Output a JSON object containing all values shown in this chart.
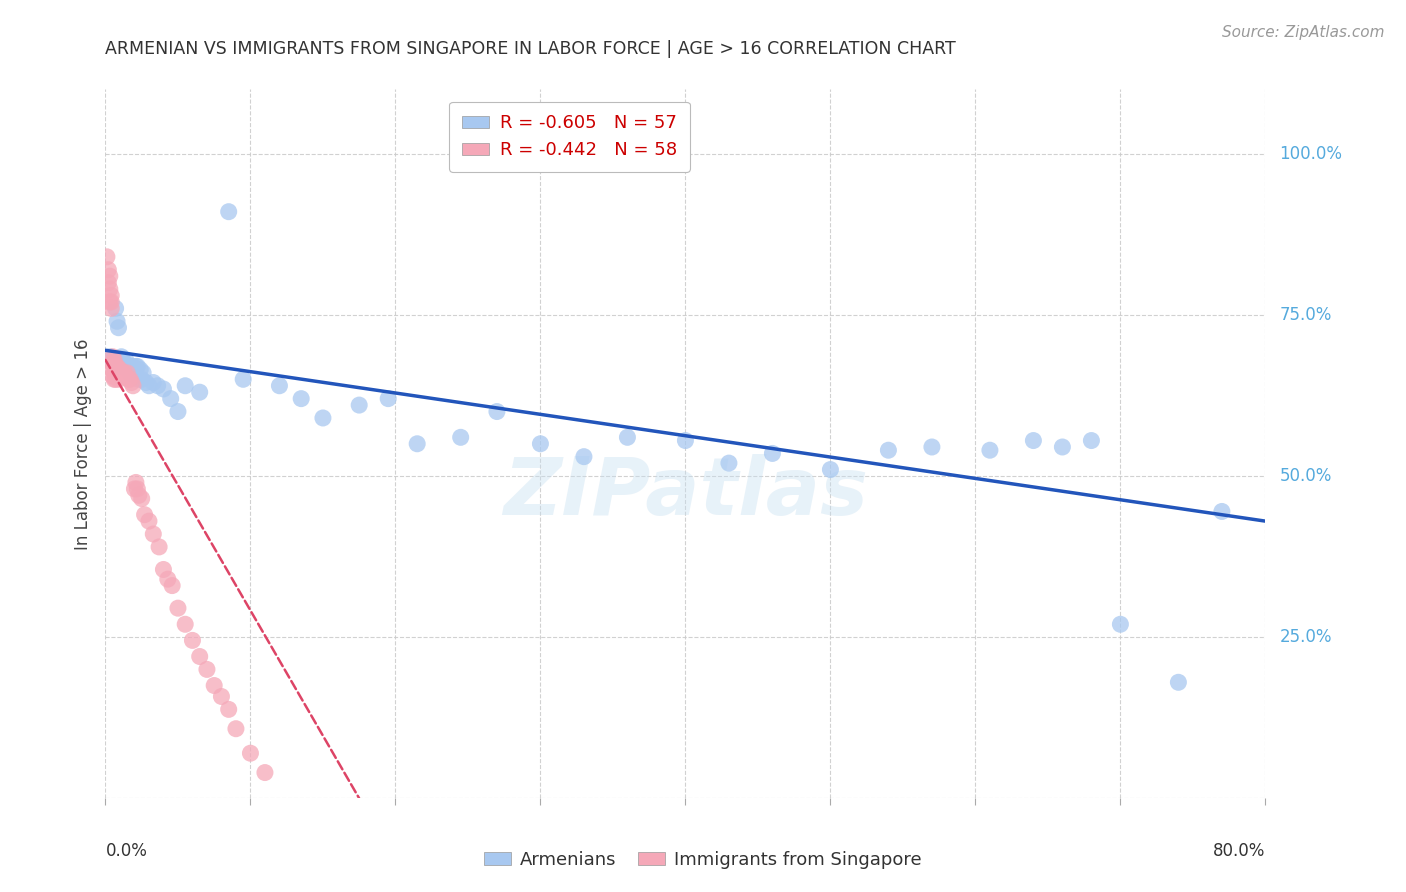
{
  "title": "ARMENIAN VS IMMIGRANTS FROM SINGAPORE IN LABOR FORCE | AGE > 16 CORRELATION CHART",
  "source": "Source: ZipAtlas.com",
  "ylabel": "In Labor Force | Age > 16",
  "legend_blue_r": "R = -0.605",
  "legend_blue_n": "N = 57",
  "legend_pink_r": "R = -0.442",
  "legend_pink_n": "N = 58",
  "legend_bottom_blue": "Armenians",
  "legend_bottom_pink": "Immigrants from Singapore",
  "blue_color": "#a8c8f0",
  "pink_color": "#f5a8b8",
  "blue_line_color": "#2255bb",
  "pink_line_color": "#dd4466",
  "background_color": "#ffffff",
  "grid_color": "#cccccc",
  "title_color": "#333333",
  "source_color": "#999999",
  "right_axis_color": "#55aadd",
  "xlim": [
    0.0,
    0.8
  ],
  "ylim": [
    0.0,
    1.1
  ],
  "right_ytick_vals": [
    1.0,
    0.75,
    0.5,
    0.25
  ],
  "right_ytick_labels": [
    "100.0%",
    "75.0%",
    "50.0%",
    "25.0%"
  ],
  "blue_x": [
    0.003,
    0.005,
    0.007,
    0.008,
    0.009,
    0.01,
    0.011,
    0.012,
    0.013,
    0.014,
    0.015,
    0.016,
    0.017,
    0.018,
    0.019,
    0.02,
    0.021,
    0.022,
    0.023,
    0.024,
    0.025,
    0.026,
    0.028,
    0.03,
    0.033,
    0.036,
    0.04,
    0.045,
    0.05,
    0.055,
    0.065,
    0.085,
    0.095,
    0.12,
    0.135,
    0.15,
    0.175,
    0.195,
    0.215,
    0.245,
    0.27,
    0.3,
    0.33,
    0.36,
    0.4,
    0.43,
    0.46,
    0.5,
    0.54,
    0.57,
    0.61,
    0.64,
    0.66,
    0.68,
    0.7,
    0.74,
    0.77
  ],
  "blue_y": [
    0.685,
    0.68,
    0.76,
    0.74,
    0.73,
    0.67,
    0.685,
    0.68,
    0.67,
    0.68,
    0.67,
    0.67,
    0.66,
    0.67,
    0.67,
    0.665,
    0.67,
    0.67,
    0.65,
    0.665,
    0.65,
    0.66,
    0.645,
    0.64,
    0.645,
    0.64,
    0.635,
    0.62,
    0.6,
    0.64,
    0.63,
    0.91,
    0.65,
    0.64,
    0.62,
    0.59,
    0.61,
    0.62,
    0.55,
    0.56,
    0.6,
    0.55,
    0.53,
    0.56,
    0.555,
    0.52,
    0.535,
    0.51,
    0.54,
    0.545,
    0.54,
    0.555,
    0.545,
    0.555,
    0.27,
    0.18,
    0.445
  ],
  "pink_x": [
    0.001,
    0.002,
    0.002,
    0.003,
    0.003,
    0.003,
    0.004,
    0.004,
    0.004,
    0.005,
    0.005,
    0.005,
    0.005,
    0.006,
    0.006,
    0.006,
    0.006,
    0.007,
    0.007,
    0.007,
    0.008,
    0.008,
    0.009,
    0.009,
    0.01,
    0.01,
    0.011,
    0.012,
    0.013,
    0.014,
    0.015,
    0.016,
    0.017,
    0.018,
    0.019,
    0.02,
    0.021,
    0.022,
    0.023,
    0.025,
    0.027,
    0.03,
    0.033,
    0.037,
    0.04,
    0.043,
    0.046,
    0.05,
    0.055,
    0.06,
    0.065,
    0.07,
    0.075,
    0.08,
    0.085,
    0.09,
    0.1,
    0.11
  ],
  "pink_y": [
    0.84,
    0.82,
    0.8,
    0.81,
    0.79,
    0.77,
    0.78,
    0.77,
    0.76,
    0.685,
    0.675,
    0.665,
    0.655,
    0.68,
    0.67,
    0.66,
    0.65,
    0.67,
    0.66,
    0.65,
    0.67,
    0.655,
    0.665,
    0.65,
    0.665,
    0.66,
    0.66,
    0.66,
    0.66,
    0.655,
    0.66,
    0.65,
    0.65,
    0.645,
    0.64,
    0.48,
    0.49,
    0.48,
    0.47,
    0.465,
    0.44,
    0.43,
    0.41,
    0.39,
    0.355,
    0.34,
    0.33,
    0.295,
    0.27,
    0.245,
    0.22,
    0.2,
    0.175,
    0.158,
    0.138,
    0.108,
    0.07,
    0.04
  ],
  "blue_line_x0": 0.0,
  "blue_line_x1": 0.8,
  "blue_line_y0": 0.695,
  "blue_line_y1": 0.43,
  "pink_line_x0": 0.0,
  "pink_line_x1": 0.175,
  "pink_line_y0": 0.68,
  "pink_line_y1": 0.0
}
